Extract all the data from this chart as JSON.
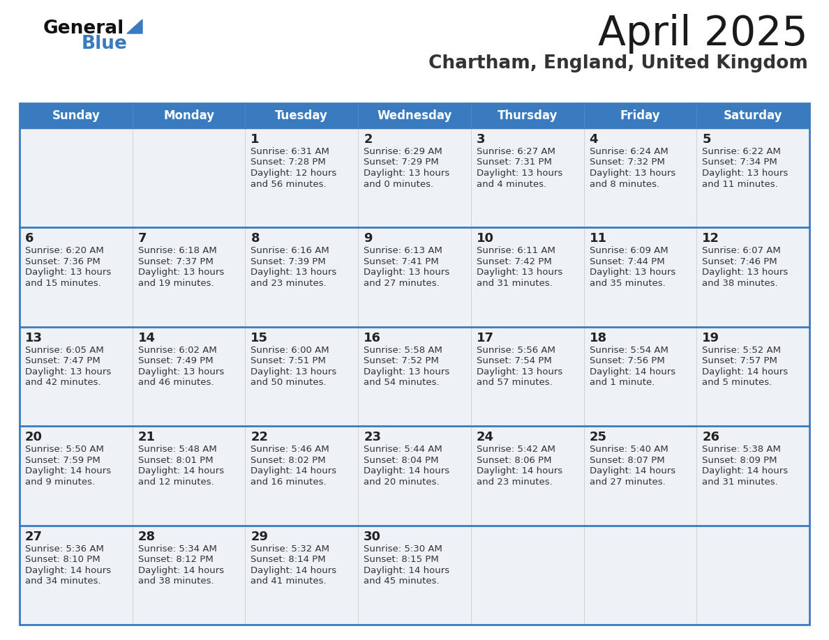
{
  "title": "April 2025",
  "subtitle": "Chartham, England, United Kingdom",
  "days_of_week": [
    "Sunday",
    "Monday",
    "Tuesday",
    "Wednesday",
    "Thursday",
    "Friday",
    "Saturday"
  ],
  "header_bg": "#3a7bbf",
  "header_text": "#ffffff",
  "cell_bg": "#eef1f5",
  "border_color": "#3a7bbf",
  "row_sep_color": "#3a7bbf",
  "col_sep_color": "#cccccc",
  "day_num_color": "#222222",
  "content_color": "#333333",
  "logo_general_color": "#111111",
  "logo_blue_color": "#3a7bbf",
  "logo_triangle_color": "#3a7bbf",
  "calendar": [
    [
      {
        "day": "",
        "lines": []
      },
      {
        "day": "",
        "lines": []
      },
      {
        "day": "1",
        "lines": [
          "Sunrise: 6:31 AM",
          "Sunset: 7:28 PM",
          "Daylight: 12 hours",
          "and 56 minutes."
        ]
      },
      {
        "day": "2",
        "lines": [
          "Sunrise: 6:29 AM",
          "Sunset: 7:29 PM",
          "Daylight: 13 hours",
          "and 0 minutes."
        ]
      },
      {
        "day": "3",
        "lines": [
          "Sunrise: 6:27 AM",
          "Sunset: 7:31 PM",
          "Daylight: 13 hours",
          "and 4 minutes."
        ]
      },
      {
        "day": "4",
        "lines": [
          "Sunrise: 6:24 AM",
          "Sunset: 7:32 PM",
          "Daylight: 13 hours",
          "and 8 minutes."
        ]
      },
      {
        "day": "5",
        "lines": [
          "Sunrise: 6:22 AM",
          "Sunset: 7:34 PM",
          "Daylight: 13 hours",
          "and 11 minutes."
        ]
      }
    ],
    [
      {
        "day": "6",
        "lines": [
          "Sunrise: 6:20 AM",
          "Sunset: 7:36 PM",
          "Daylight: 13 hours",
          "and 15 minutes."
        ]
      },
      {
        "day": "7",
        "lines": [
          "Sunrise: 6:18 AM",
          "Sunset: 7:37 PM",
          "Daylight: 13 hours",
          "and 19 minutes."
        ]
      },
      {
        "day": "8",
        "lines": [
          "Sunrise: 6:16 AM",
          "Sunset: 7:39 PM",
          "Daylight: 13 hours",
          "and 23 minutes."
        ]
      },
      {
        "day": "9",
        "lines": [
          "Sunrise: 6:13 AM",
          "Sunset: 7:41 PM",
          "Daylight: 13 hours",
          "and 27 minutes."
        ]
      },
      {
        "day": "10",
        "lines": [
          "Sunrise: 6:11 AM",
          "Sunset: 7:42 PM",
          "Daylight: 13 hours",
          "and 31 minutes."
        ]
      },
      {
        "day": "11",
        "lines": [
          "Sunrise: 6:09 AM",
          "Sunset: 7:44 PM",
          "Daylight: 13 hours",
          "and 35 minutes."
        ]
      },
      {
        "day": "12",
        "lines": [
          "Sunrise: 6:07 AM",
          "Sunset: 7:46 PM",
          "Daylight: 13 hours",
          "and 38 minutes."
        ]
      }
    ],
    [
      {
        "day": "13",
        "lines": [
          "Sunrise: 6:05 AM",
          "Sunset: 7:47 PM",
          "Daylight: 13 hours",
          "and 42 minutes."
        ]
      },
      {
        "day": "14",
        "lines": [
          "Sunrise: 6:02 AM",
          "Sunset: 7:49 PM",
          "Daylight: 13 hours",
          "and 46 minutes."
        ]
      },
      {
        "day": "15",
        "lines": [
          "Sunrise: 6:00 AM",
          "Sunset: 7:51 PM",
          "Daylight: 13 hours",
          "and 50 minutes."
        ]
      },
      {
        "day": "16",
        "lines": [
          "Sunrise: 5:58 AM",
          "Sunset: 7:52 PM",
          "Daylight: 13 hours",
          "and 54 minutes."
        ]
      },
      {
        "day": "17",
        "lines": [
          "Sunrise: 5:56 AM",
          "Sunset: 7:54 PM",
          "Daylight: 13 hours",
          "and 57 minutes."
        ]
      },
      {
        "day": "18",
        "lines": [
          "Sunrise: 5:54 AM",
          "Sunset: 7:56 PM",
          "Daylight: 14 hours",
          "and 1 minute."
        ]
      },
      {
        "day": "19",
        "lines": [
          "Sunrise: 5:52 AM",
          "Sunset: 7:57 PM",
          "Daylight: 14 hours",
          "and 5 minutes."
        ]
      }
    ],
    [
      {
        "day": "20",
        "lines": [
          "Sunrise: 5:50 AM",
          "Sunset: 7:59 PM",
          "Daylight: 14 hours",
          "and 9 minutes."
        ]
      },
      {
        "day": "21",
        "lines": [
          "Sunrise: 5:48 AM",
          "Sunset: 8:01 PM",
          "Daylight: 14 hours",
          "and 12 minutes."
        ]
      },
      {
        "day": "22",
        "lines": [
          "Sunrise: 5:46 AM",
          "Sunset: 8:02 PM",
          "Daylight: 14 hours",
          "and 16 minutes."
        ]
      },
      {
        "day": "23",
        "lines": [
          "Sunrise: 5:44 AM",
          "Sunset: 8:04 PM",
          "Daylight: 14 hours",
          "and 20 minutes."
        ]
      },
      {
        "day": "24",
        "lines": [
          "Sunrise: 5:42 AM",
          "Sunset: 8:06 PM",
          "Daylight: 14 hours",
          "and 23 minutes."
        ]
      },
      {
        "day": "25",
        "lines": [
          "Sunrise: 5:40 AM",
          "Sunset: 8:07 PM",
          "Daylight: 14 hours",
          "and 27 minutes."
        ]
      },
      {
        "day": "26",
        "lines": [
          "Sunrise: 5:38 AM",
          "Sunset: 8:09 PM",
          "Daylight: 14 hours",
          "and 31 minutes."
        ]
      }
    ],
    [
      {
        "day": "27",
        "lines": [
          "Sunrise: 5:36 AM",
          "Sunset: 8:10 PM",
          "Daylight: 14 hours",
          "and 34 minutes."
        ]
      },
      {
        "day": "28",
        "lines": [
          "Sunrise: 5:34 AM",
          "Sunset: 8:12 PM",
          "Daylight: 14 hours",
          "and 38 minutes."
        ]
      },
      {
        "day": "29",
        "lines": [
          "Sunrise: 5:32 AM",
          "Sunset: 8:14 PM",
          "Daylight: 14 hours",
          "and 41 minutes."
        ]
      },
      {
        "day": "30",
        "lines": [
          "Sunrise: 5:30 AM",
          "Sunset: 8:15 PM",
          "Daylight: 14 hours",
          "and 45 minutes."
        ]
      },
      {
        "day": "",
        "lines": []
      },
      {
        "day": "",
        "lines": []
      },
      {
        "day": "",
        "lines": []
      }
    ]
  ]
}
